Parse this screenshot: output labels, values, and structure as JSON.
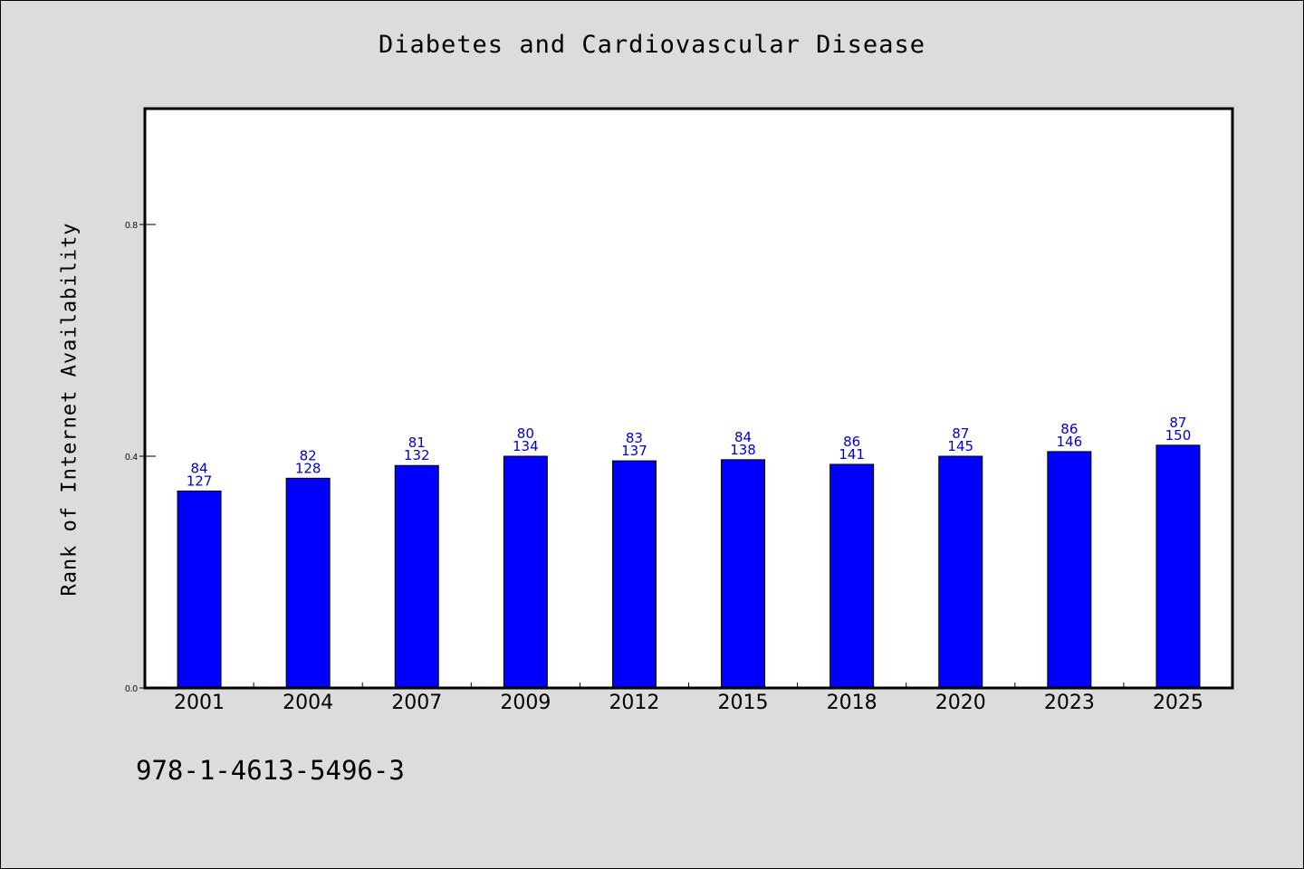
{
  "title": "Diabetes and Cardiovascular Disease",
  "footnote": "978-1-4613-5496-3",
  "colors": {
    "background": "#dcdcdc",
    "plot_background": "#ffffff",
    "bar": "#0000ff",
    "label": "#0000cc"
  },
  "chart_data": {
    "type": "bar",
    "title": "Diabetes and Cardiovascular Disease",
    "xlabel": "",
    "ylabel": "Rank of Internet Availability",
    "ylim": [
      0,
      1.0
    ],
    "yticks": [
      0.0,
      0.4,
      0.8
    ],
    "ytick_labels": [
      "0.0",
      "0.4",
      "0.8"
    ],
    "grid": false,
    "categories": [
      "2001",
      "2004",
      "2007",
      "2009",
      "2012",
      "2015",
      "2018",
      "2020",
      "2023",
      "2025"
    ],
    "values": [
      0.34,
      0.362,
      0.384,
      0.4,
      0.392,
      0.394,
      0.386,
      0.4,
      0.408,
      0.419
    ],
    "label_top": [
      "84",
      "82",
      "81",
      "80",
      "83",
      "84",
      "86",
      "87",
      "86",
      "87"
    ],
    "label_bottom": [
      "127",
      "128",
      "132",
      "134",
      "137",
      "138",
      "141",
      "145",
      "146",
      "150"
    ]
  }
}
